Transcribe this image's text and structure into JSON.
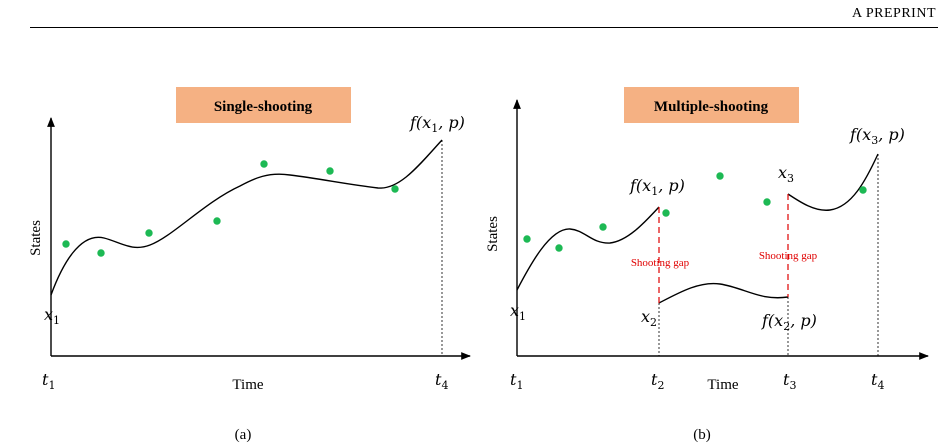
{
  "header": {
    "running_title": "A PREPRINT"
  },
  "colors": {
    "banner": "#f5b183",
    "point": "#1db954",
    "gap": "#e00000"
  },
  "panel_a": {
    "banner": "Single-shooting",
    "ylabel": "States",
    "xlabel": "Time",
    "caption": "(a)",
    "t1": "t",
    "t1_sub": "1",
    "t4": "t",
    "t4_sub": "4",
    "x1": "x",
    "x1_sub": "1",
    "end_label": {
      "f": "f(",
      "x": "x",
      "sub": "1",
      "rest": ", p)"
    }
  },
  "panel_b": {
    "banner": "Multiple-shooting",
    "ylabel": "States",
    "xlabel": "Time",
    "caption": "(b)",
    "gap_label_1": "Shooting gap",
    "gap_label_2": "Shooting gap",
    "t1": "t",
    "t1_sub": "1",
    "t2": "t",
    "t2_sub": "2",
    "t3": "t",
    "t3_sub": "3",
    "t4": "t",
    "t4_sub": "4",
    "x1": "x",
    "x1_sub": "1",
    "x2": "x",
    "x2_sub": "2",
    "x3": "x",
    "x3_sub": "3",
    "f_seg1": {
      "f": "f(",
      "x": "x",
      "sub": "1",
      "rest": ", p)"
    },
    "f_seg2": {
      "f": "f(",
      "x": "x",
      "sub": "2",
      "rest": ", p)"
    },
    "f_seg3": {
      "f": "f(",
      "x": "x",
      "sub": "3",
      "rest": ", p)"
    }
  }
}
